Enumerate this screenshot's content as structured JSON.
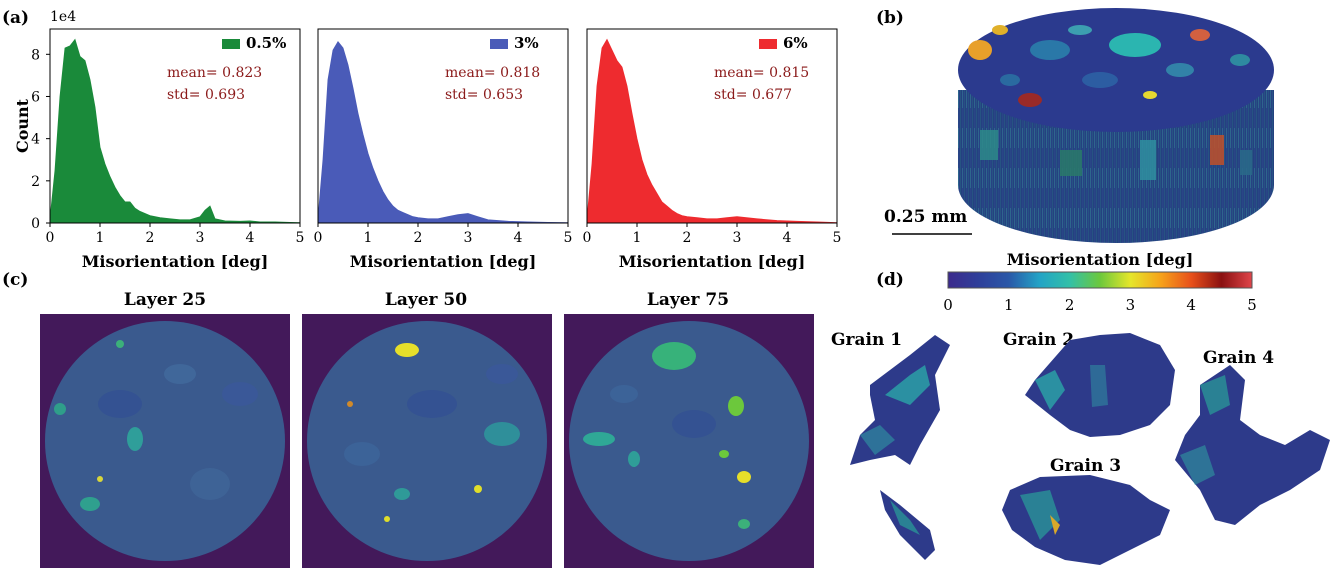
{
  "panels": {
    "a": "(a)",
    "b": "(b)",
    "c": "(c)",
    "d": "(d)"
  },
  "chart_data": [
    {
      "type": "area",
      "legend": "0.5%",
      "color": "#1a8a3a",
      "mean_text": "mean= 0.823",
      "std_text": "std= 0.693",
      "xlabel": "Misorientation [deg]",
      "ylabel": "Count",
      "yscale_text": "1e4",
      "xlim": [
        0,
        5
      ],
      "ylim": [
        0,
        9.2
      ],
      "xticks": [
        0,
        1,
        2,
        3,
        4,
        5
      ],
      "yticks": [
        0,
        2,
        4,
        6,
        8
      ],
      "x": [
        0,
        0.1,
        0.2,
        0.3,
        0.4,
        0.5,
        0.6,
        0.7,
        0.8,
        0.9,
        1.0,
        1.1,
        1.2,
        1.3,
        1.4,
        1.5,
        1.6,
        1.7,
        1.8,
        1.9,
        2.0,
        2.2,
        2.4,
        2.6,
        2.8,
        3.0,
        3.1,
        3.2,
        3.3,
        3.5,
        3.8,
        4.0,
        4.2,
        4.5,
        4.8,
        5.0
      ],
      "y": [
        0.2,
        2.5,
        6.0,
        8.3,
        8.4,
        8.7,
        7.9,
        7.7,
        6.8,
        5.5,
        3.6,
        2.8,
        2.2,
        1.7,
        1.3,
        1.0,
        1.0,
        0.7,
        0.55,
        0.45,
        0.35,
        0.25,
        0.2,
        0.15,
        0.15,
        0.3,
        0.6,
        0.8,
        0.2,
        0.1,
        0.08,
        0.1,
        0.05,
        0.05,
        0.03,
        0.02
      ]
    },
    {
      "type": "area",
      "legend": "3%",
      "color": "#4a5bb8",
      "mean_text": "mean= 0.818",
      "std_text": "std= 0.653",
      "xlabel": "Misorientation [deg]",
      "xlim": [
        0,
        5
      ],
      "ylim": [
        0,
        9.2
      ],
      "xticks": [
        0,
        1,
        2,
        3,
        4,
        5
      ],
      "x": [
        0,
        0.1,
        0.2,
        0.3,
        0.4,
        0.5,
        0.6,
        0.7,
        0.8,
        0.9,
        1.0,
        1.1,
        1.2,
        1.3,
        1.4,
        1.5,
        1.6,
        1.7,
        1.8,
        1.9,
        2.0,
        2.2,
        2.4,
        2.6,
        2.8,
        3.0,
        3.2,
        3.4,
        3.8,
        4.2,
        4.6,
        5.0
      ],
      "y": [
        0.2,
        3.0,
        6.8,
        8.2,
        8.6,
        8.3,
        7.5,
        6.4,
        5.2,
        4.2,
        3.3,
        2.6,
        2.0,
        1.5,
        1.1,
        0.8,
        0.6,
        0.5,
        0.4,
        0.3,
        0.25,
        0.2,
        0.2,
        0.3,
        0.4,
        0.45,
        0.3,
        0.15,
        0.08,
        0.05,
        0.03,
        0.02
      ]
    },
    {
      "type": "area",
      "legend": "6%",
      "color": "#ee2b2f",
      "mean_text": "mean= 0.815",
      "std_text": "std= 0.677",
      "xlabel": "Misorientation [deg]",
      "xlim": [
        0,
        5
      ],
      "ylim": [
        0,
        9.2
      ],
      "xticks": [
        0,
        1,
        2,
        3,
        4,
        5
      ],
      "x": [
        0,
        0.1,
        0.2,
        0.3,
        0.4,
        0.5,
        0.6,
        0.7,
        0.8,
        0.9,
        1.0,
        1.1,
        1.2,
        1.3,
        1.4,
        1.5,
        1.6,
        1.7,
        1.8,
        1.9,
        2.0,
        2.2,
        2.4,
        2.6,
        2.8,
        3.0,
        3.4,
        3.8,
        4.2,
        4.6,
        5.0
      ],
      "y": [
        0.2,
        2.8,
        6.5,
        8.3,
        8.7,
        8.2,
        7.7,
        7.4,
        6.5,
        5.2,
        4.0,
        3.0,
        2.3,
        1.8,
        1.4,
        1.0,
        0.8,
        0.6,
        0.45,
        0.35,
        0.3,
        0.25,
        0.2,
        0.2,
        0.25,
        0.3,
        0.2,
        0.12,
        0.08,
        0.05,
        0.02
      ]
    }
  ],
  "cylinder": {
    "scale_label": "0.25 mm"
  },
  "colorbar": {
    "title": "Misorientation [deg]",
    "ticks": [
      "0",
      "1",
      "2",
      "3",
      "4",
      "5"
    ],
    "colors": [
      "#3b2a8c",
      "#2f3f9a",
      "#2a58a8",
      "#23a3c6",
      "#33c0a8",
      "#6cc83c",
      "#e5e62a",
      "#f6a21a",
      "#e8501a",
      "#8a1010",
      "#e0454a"
    ]
  },
  "layers": [
    {
      "title": "Layer 25"
    },
    {
      "title": "Layer 50"
    },
    {
      "title": "Layer 75"
    }
  ],
  "grains": [
    {
      "label": "Grain 1"
    },
    {
      "label": "Grain 2"
    },
    {
      "label": "Grain 3"
    },
    {
      "label": "Grain 4"
    }
  ]
}
